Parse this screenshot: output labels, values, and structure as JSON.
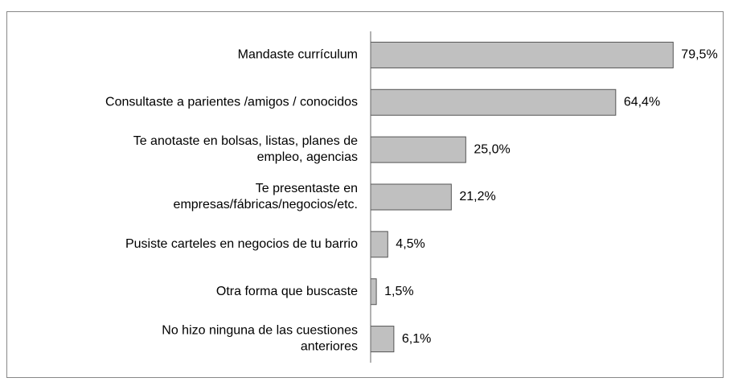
{
  "chart_data": {
    "type": "bar",
    "orientation": "horizontal",
    "categories": [
      "Mandaste currículum",
      "Consultaste a parientes /amigos / conocidos",
      "Te anotaste en bolsas, listas, planes de\nempleo, agencias",
      "Te presentaste en\nempresas/fábricas/negocios/etc.",
      "Pusiste carteles en negocios de tu barrio",
      "Otra forma que buscaste",
      "No hizo ninguna de las cuestiones\nanteriores"
    ],
    "values": [
      79.5,
      64.4,
      25.0,
      21.2,
      4.5,
      1.5,
      6.1
    ],
    "value_labels": [
      "79,5%",
      "64,4%",
      "25,0%",
      "21,2%",
      "4,5%",
      "1,5%",
      "6,1%"
    ],
    "color": "#c0c0c0",
    "xlim": [
      0,
      90
    ]
  }
}
